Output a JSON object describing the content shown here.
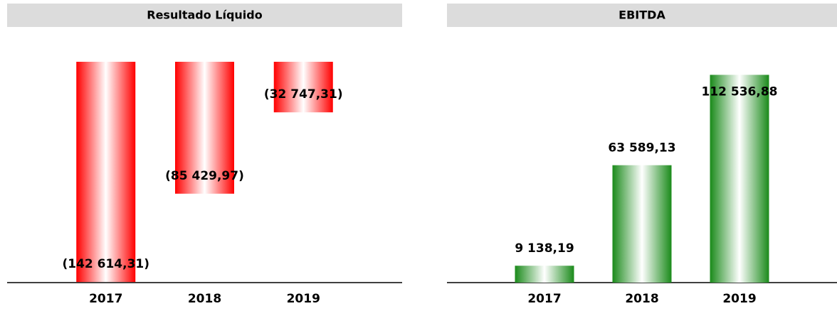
{
  "chart_data": [
    {
      "type": "bar",
      "title": "Resultado Líquido",
      "categories": [
        "2017",
        "2018",
        "2019"
      ],
      "values": [
        -142614.31,
        -85429.97,
        -32747.31
      ],
      "value_labels": [
        "(142 614,31)",
        "(85 429,97)",
        "(32 747,31)"
      ],
      "color": "#ff0000",
      "ylim": [
        -143000,
        0
      ]
    },
    {
      "type": "bar",
      "title": "EBITDA",
      "categories": [
        "2017",
        "2018",
        "2019"
      ],
      "values": [
        9138.19,
        63589.13,
        112536.88
      ],
      "value_labels": [
        "9 138,19",
        "63 589,13",
        "112 536,88"
      ],
      "color": "#1a8a1a",
      "ylim": [
        0,
        130000
      ]
    }
  ]
}
